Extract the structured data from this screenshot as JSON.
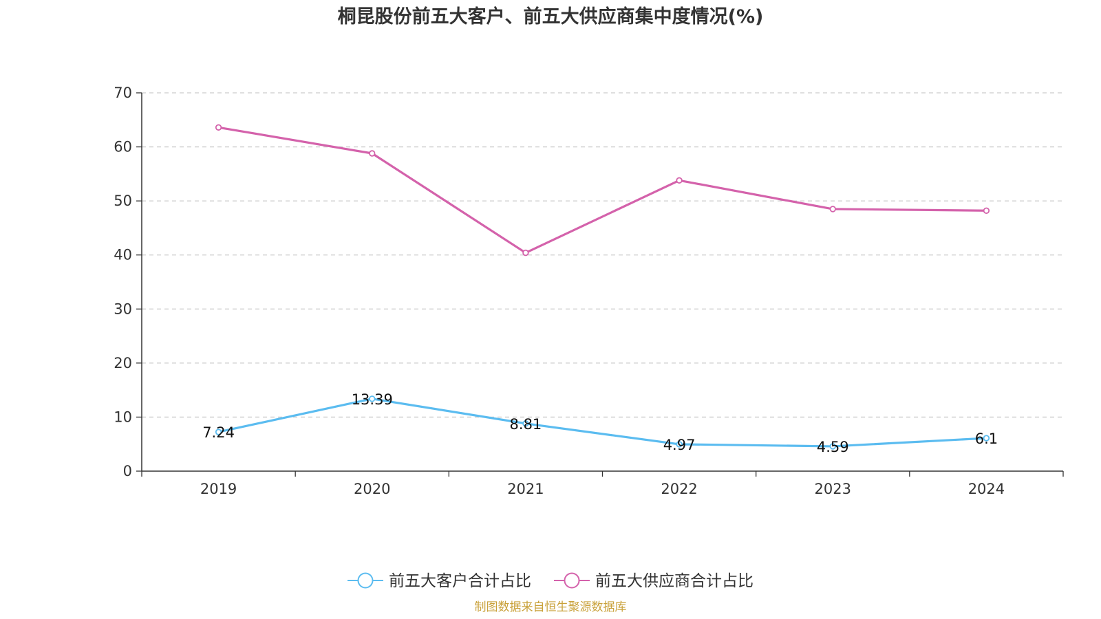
{
  "chart_data": {
    "type": "line",
    "title": "桐昆股份前五大客户、前五大供应商集中度情况(%)",
    "categories": [
      "2019",
      "2020",
      "2021",
      "2022",
      "2023",
      "2024"
    ],
    "ylim": [
      0,
      70
    ],
    "yticks": [
      0,
      10,
      20,
      30,
      40,
      50,
      60,
      70
    ],
    "grid": true,
    "legend_position": "bottom-center",
    "series": [
      {
        "name": "前五大客户合计占比",
        "color": "#5bbcf0",
        "values": [
          7.24,
          13.39,
          8.81,
          4.97,
          4.59,
          6.1
        ],
        "labels": [
          "7.24",
          "13.39",
          "8.81",
          "4.97",
          "4.59",
          "6.1"
        ],
        "show_labels": true
      },
      {
        "name": "前五大供应商合计占比",
        "color": "#d462ab",
        "values": [
          63.6,
          58.8,
          40.4,
          53.8,
          48.5,
          48.2
        ],
        "show_labels": false
      }
    ]
  },
  "source": {
    "text": "制图数据来自恒生聚源数据库",
    "color": "#c9a13a"
  }
}
